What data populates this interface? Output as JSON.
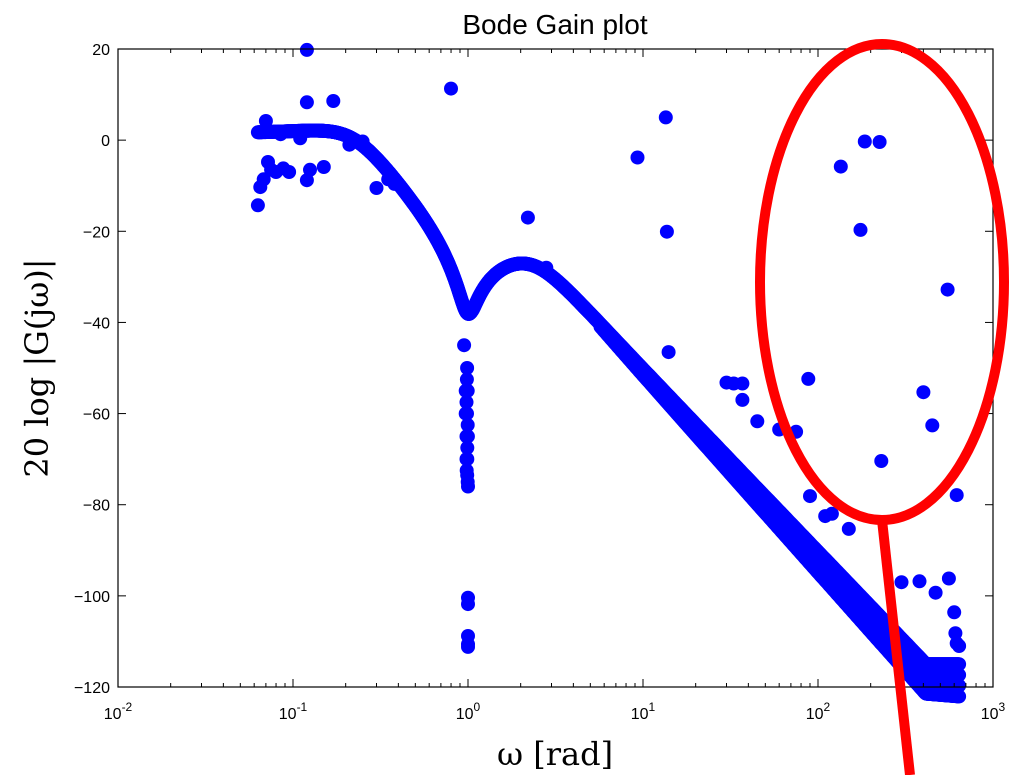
{
  "chart_data": {
    "type": "scatter",
    "title": "Bode Gain plot",
    "xlabel": "ω  [rad]",
    "ylabel": "20 log |G(jω)|",
    "xscale": "log",
    "xlim": [
      0.01,
      1000
    ],
    "ylim": [
      -120,
      20
    ],
    "xticks": [
      0.01,
      0.1,
      1,
      10,
      100,
      1000
    ],
    "xtick_labels": [
      {
        "base": "10",
        "exp": "-2"
      },
      {
        "base": "10",
        "exp": "-1"
      },
      {
        "base": "10",
        "exp": "0"
      },
      {
        "base": "10",
        "exp": "1"
      },
      {
        "base": "10",
        "exp": "2"
      },
      {
        "base": "10",
        "exp": "3"
      }
    ],
    "yticks": [
      -120,
      -100,
      -80,
      -60,
      -40,
      -20,
      0,
      20
    ],
    "ytick_labels": [
      "−120",
      "−100",
      "−80",
      "−60",
      "−40",
      "−20",
      "0",
      "20"
    ],
    "grid": false,
    "marker_color": "#0000ff",
    "annotation_color": "#ff0000",
    "series": [
      {
        "marker": "filled-circle",
        "points": [
          [
            0.063,
            -14.3
          ],
          [
            0.065,
            -10.3
          ],
          [
            0.068,
            -8.6
          ],
          [
            0.07,
            4.2
          ],
          [
            0.072,
            -4.8
          ],
          [
            0.075,
            -6.5
          ],
          [
            0.08,
            -7.0
          ],
          [
            0.085,
            1.3
          ],
          [
            0.088,
            -6.2
          ],
          [
            0.095,
            -7.0
          ],
          [
            0.11,
            0.4
          ],
          [
            0.12,
            19.8
          ],
          [
            0.12,
            8.3
          ],
          [
            0.12,
            -8.8
          ],
          [
            0.125,
            -6.5
          ],
          [
            0.15,
            -5.9
          ],
          [
            0.17,
            8.6
          ],
          [
            0.21,
            -1.0
          ],
          [
            0.25,
            -0.3
          ],
          [
            0.3,
            -10.5
          ],
          [
            0.35,
            -8.6
          ],
          [
            0.38,
            -9.6
          ],
          [
            0.8,
            11.3
          ],
          [
            0.95,
            -45.0
          ],
          [
            0.97,
            -55.0
          ],
          [
            0.97,
            -60.0
          ],
          [
            0.98,
            -65.0
          ],
          [
            0.98,
            -70.0
          ],
          [
            0.99,
            -73.5
          ],
          [
            1.0,
            -76.0
          ],
          [
            1.0,
            -100.4
          ],
          [
            1.0,
            -101.8
          ],
          [
            1.0,
            -108.8
          ],
          [
            1.0,
            -110.6
          ],
          [
            1.0,
            -111.2
          ],
          [
            2.2,
            -17.0
          ],
          [
            2.8,
            -28.0
          ],
          [
            9.3,
            -3.8
          ],
          [
            13.5,
            5.0
          ],
          [
            13.7,
            -20.1
          ],
          [
            14.0,
            -46.5
          ],
          [
            30.0,
            -53.2
          ],
          [
            33.0,
            -53.4
          ],
          [
            37.0,
            -53.4
          ],
          [
            37.0,
            -57.0
          ],
          [
            45.0,
            -61.7
          ],
          [
            60.0,
            -63.5
          ],
          [
            75.0,
            -64.0
          ],
          [
            88.0,
            -52.4
          ],
          [
            135.0,
            -5.8
          ],
          [
            175.0,
            -19.7
          ],
          [
            185.0,
            -0.3
          ],
          [
            225.0,
            -0.4
          ],
          [
            230.0,
            -70.4
          ],
          [
            400.0,
            -55.3
          ],
          [
            450.0,
            -62.6
          ],
          [
            550.0,
            -32.8
          ],
          [
            560.0,
            -96.2
          ],
          [
            600.0,
            -103.6
          ],
          [
            620.0,
            -77.9
          ],
          [
            610.0,
            -108.2
          ],
          [
            620.0,
            -110.4
          ],
          [
            640.0,
            -111.0
          ],
          [
            380.0,
            -96.8
          ],
          [
            470.0,
            -99.3
          ],
          [
            300.0,
            -97.0
          ],
          [
            150.0,
            -85.3
          ],
          [
            120.0,
            -82.0
          ],
          [
            90.0,
            -78.1
          ],
          [
            110.0,
            -82.5
          ]
        ]
      }
    ],
    "curve": {
      "description_free": true,
      "model": "bode"
    }
  }
}
